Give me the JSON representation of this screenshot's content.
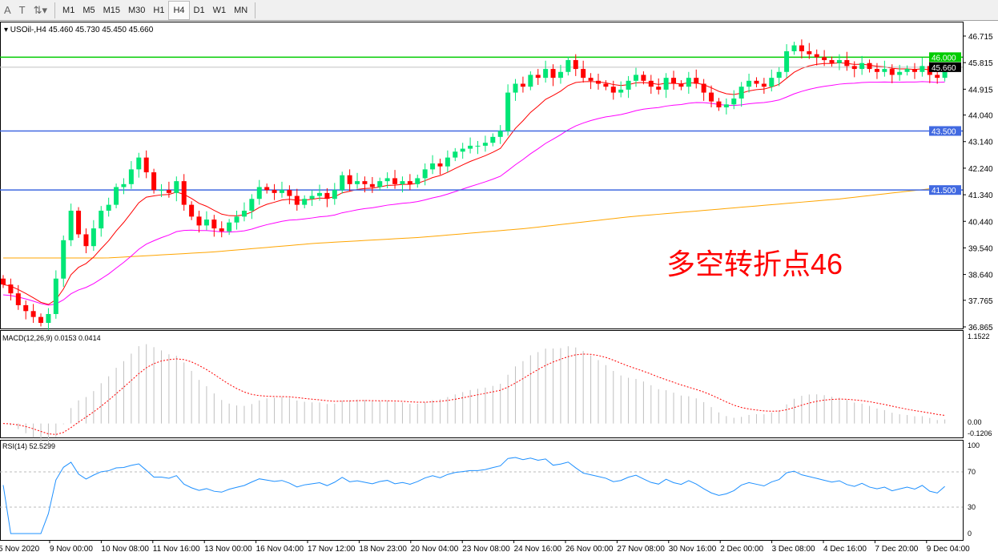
{
  "toolbar": {
    "tools": [
      {
        "icon": "text-tool-icon",
        "glyph": "A"
      },
      {
        "icon": "text-label-icon",
        "glyph": "T"
      },
      {
        "icon": "arrows-dropdown-icon",
        "glyph": "⇅▾"
      }
    ],
    "timeframes": [
      "M1",
      "M5",
      "M15",
      "M30",
      "H1",
      "H4",
      "D1",
      "W1",
      "MN"
    ],
    "active_timeframe": "H4"
  },
  "chart_header": "USOil-,H4  45.460 45.730 45.450 45.660",
  "annotation": "多空转折点46",
  "macd_label": "MACD(12,26,9) 0.0153 0.0414",
  "rsi_label": "RSI(14) 52.5299",
  "colors": {
    "bull": "#00e676",
    "bear": "#ff0000",
    "ma_fast": "#ff0000",
    "ma_mid": "#ff00ff",
    "ma_slow": "#ffa500",
    "level_green": "#00cc00",
    "level_blue": "#4169e1",
    "rsi": "#1e90ff",
    "macd_hist": "#c0c0c0",
    "macd_signal": "#ff0000"
  },
  "chart_data": {
    "type": "candlestick",
    "symbol": "USOil-",
    "timeframe": "H4",
    "closes": [
      38.3,
      38.0,
      37.6,
      37.4,
      37.2,
      37.0,
      37.3,
      38.5,
      39.8,
      40.8,
      40.0,
      39.6,
      40.2,
      40.8,
      41.0,
      41.6,
      41.7,
      42.2,
      42.6,
      42.1,
      41.5,
      41.5,
      41.4,
      41.8,
      41.0,
      40.6,
      40.3,
      40.5,
      40.2,
      40.1,
      40.4,
      40.6,
      40.8,
      41.2,
      41.6,
      41.5,
      41.4,
      41.5,
      41.3,
      41.0,
      41.2,
      41.3,
      41.4,
      41.2,
      41.5,
      42.0,
      41.7,
      41.8,
      41.7,
      41.6,
      41.8,
      41.9,
      41.7,
      41.8,
      41.7,
      41.9,
      42.2,
      42.4,
      42.3,
      42.6,
      42.8,
      42.9,
      43.0,
      43.0,
      43.1,
      43.3,
      43.5,
      44.8,
      45.1,
      45.0,
      45.4,
      45.3,
      45.6,
      45.3,
      45.5,
      45.9,
      45.6,
      45.3,
      45.2,
      45.1,
      45.0,
      44.8,
      44.9,
      45.2,
      45.4,
      45.2,
      45.0,
      44.9,
      45.3,
      45.1,
      45.0,
      45.3,
      45.1,
      44.8,
      44.5,
      44.3,
      44.4,
      44.6,
      45.0,
      45.2,
      45.1,
      45.0,
      45.3,
      45.5,
      46.2,
      46.4,
      46.2,
      46.1,
      46.0,
      45.9,
      45.8,
      45.9,
      45.7,
      45.6,
      45.8,
      45.6,
      45.5,
      45.6,
      45.4,
      45.5,
      45.6,
      45.5,
      45.7,
      45.4,
      45.3,
      45.66
    ],
    "ma_slow_anchors": [
      39.2,
      39.2,
      39.4,
      39.7,
      39.9,
      40.2,
      40.6,
      40.9,
      41.2,
      41.6
    ],
    "levels": [
      {
        "value": 46.0,
        "label": "46.000",
        "color": "green"
      },
      {
        "value": 43.5,
        "label": "43.500",
        "color": "blue"
      },
      {
        "value": 41.5,
        "label": "41.500",
        "color": "blue"
      }
    ],
    "current_price": {
      "value": 45.66,
      "label": "45.660"
    },
    "price_axis": {
      "range": [
        36.865,
        46.715
      ],
      "ticks": [
        "46.715",
        "45.815",
        "44.915",
        "44.040",
        "43.140",
        "42.240",
        "41.340",
        "40.440",
        "39.540",
        "38.640",
        "37.765",
        "36.865"
      ]
    },
    "macd_axis": {
      "range": [
        -0.1206,
        1.1522
      ],
      "ticks": [
        "1.1522",
        "0.00",
        "-0.1206"
      ]
    },
    "rsi_axis": {
      "range": [
        0,
        100
      ],
      "ticks": [
        "100",
        "70",
        "30",
        "0"
      ],
      "levels": [
        70,
        30
      ]
    },
    "x_labels": [
      "5 Nov 2020",
      "9 Nov 00:00",
      "10 Nov 08:00",
      "11 Nov 16:00",
      "13 Nov 00:00",
      "16 Nov 04:00",
      "17 Nov 12:00",
      "18 Nov 23:00",
      "20 Nov 04:00",
      "23 Nov 08:00",
      "24 Nov 16:00",
      "26 Nov 00:00",
      "27 Nov 08:00",
      "30 Nov 16:00",
      "2 Dec 00:00",
      "3 Dec 08:00",
      "4 Dec 16:00",
      "7 Dec 20:00",
      "9 Dec 04:00"
    ]
  }
}
